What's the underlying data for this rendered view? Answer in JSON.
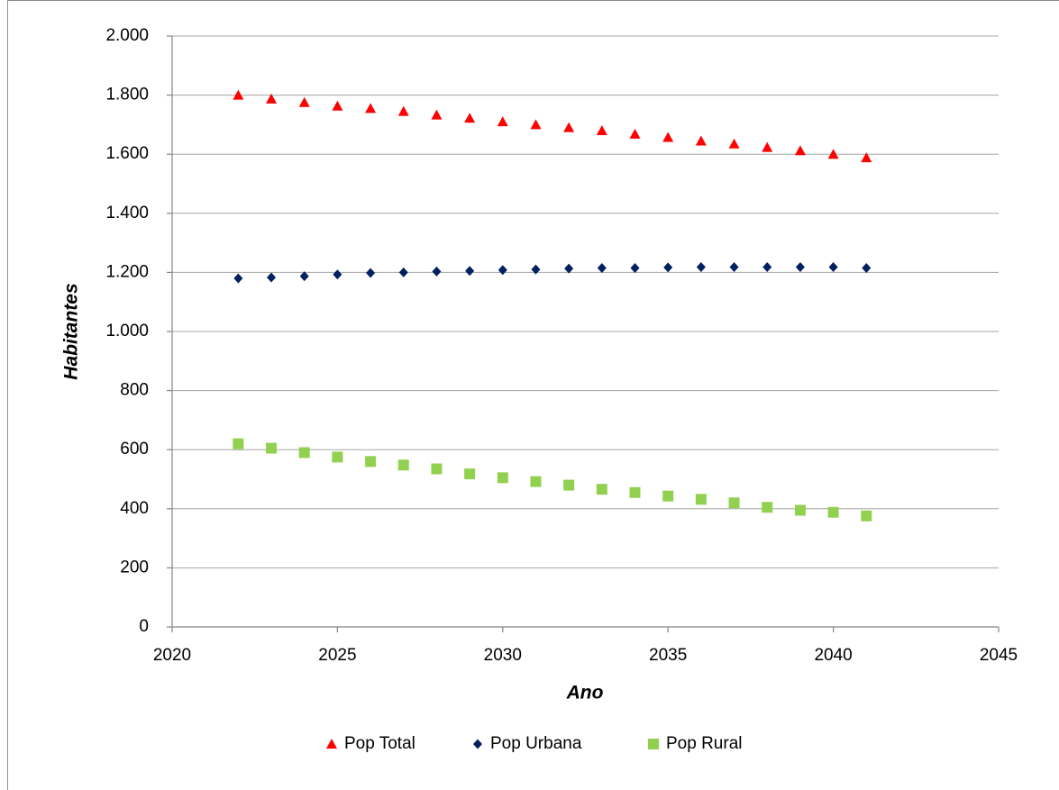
{
  "chart_data": {
    "type": "scatter",
    "x_label": "Ano",
    "y_label": "Habitantes",
    "x": [
      2022,
      2023,
      2024,
      2025,
      2026,
      2027,
      2028,
      2029,
      2030,
      2031,
      2032,
      2033,
      2034,
      2035,
      2036,
      2037,
      2038,
      2039,
      2040,
      2041
    ],
    "series": [
      {
        "name": "Pop Total",
        "color": "#ff0000",
        "marker": "triangle",
        "values": [
          1800,
          1787,
          1775,
          1763,
          1755,
          1745,
          1733,
          1722,
          1710,
          1700,
          1690,
          1680,
          1668,
          1657,
          1645,
          1635,
          1623,
          1612,
          1600,
          1588
        ]
      },
      {
        "name": "Pop Urbana",
        "color": "#002060",
        "marker": "diamond",
        "values": [
          1180,
          1183,
          1187,
          1193,
          1198,
          1200,
          1203,
          1205,
          1208,
          1210,
          1213,
          1215,
          1215,
          1217,
          1218,
          1218,
          1218,
          1218,
          1218,
          1215
        ]
      },
      {
        "name": "Pop Rural",
        "color": "#92d050",
        "marker": "square",
        "values": [
          620,
          605,
          590,
          575,
          560,
          548,
          535,
          518,
          505,
          492,
          480,
          466,
          455,
          443,
          432,
          420,
          405,
          395,
          388,
          376
        ]
      }
    ],
    "xlim": [
      2020,
      2045
    ],
    "xticks": [
      2020,
      2025,
      2030,
      2035,
      2040,
      2045
    ],
    "ylim": [
      0,
      2000
    ],
    "yticks": [
      0,
      200,
      400,
      600,
      800,
      {
        "value": 1000,
        "label": "1.000"
      },
      {
        "value": 1200,
        "label": "1.200"
      },
      {
        "value": 1400,
        "label": "1.400"
      },
      {
        "value": 1600,
        "label": "1.600"
      },
      {
        "value": 1800,
        "label": "1.800"
      },
      {
        "value": 2000,
        "label": "2.000"
      }
    ],
    "grid": true,
    "legend": "bottom"
  }
}
